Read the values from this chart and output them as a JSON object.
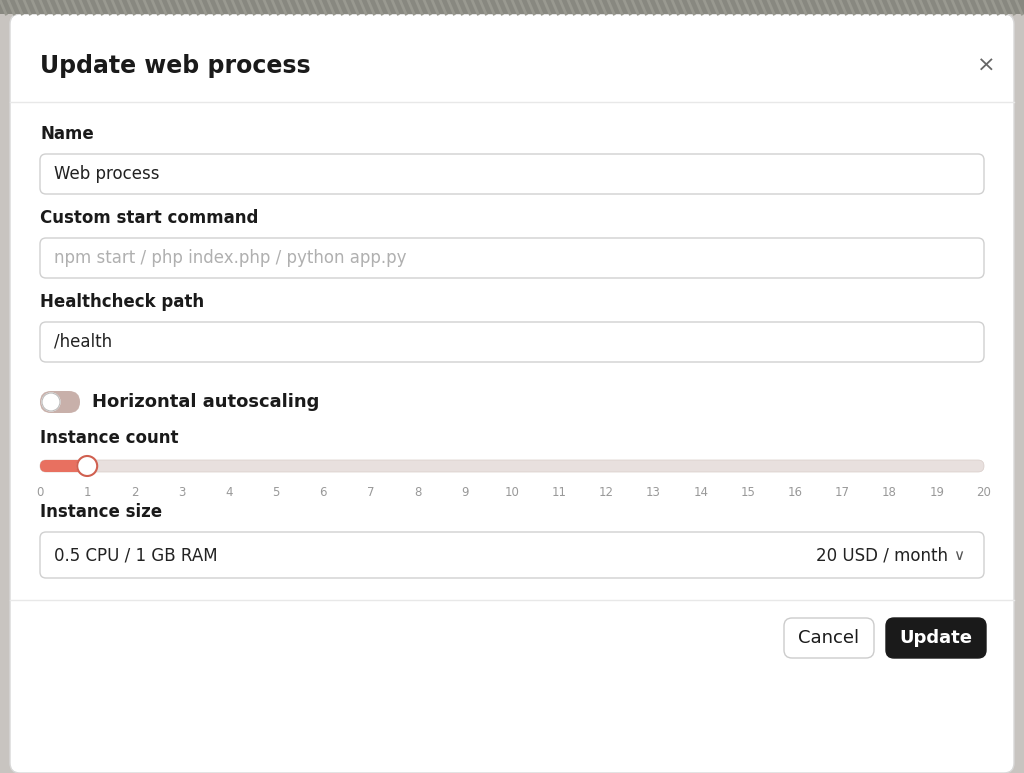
{
  "title": "Update web process",
  "close_btn": "×",
  "bg_color": "#c8c4c0",
  "dialog_bg": "#ffffff",
  "dialog_border": "#d8d8d8",
  "label_color": "#1a1a1a",
  "placeholder_color": "#b0b0b0",
  "input_text_color": "#222222",
  "input_bg": "#ffffff",
  "input_border": "#d0d0d0",
  "field_name_label": "Name",
  "field_name_value": "Web process",
  "field_cmd_label": "Custom start command",
  "field_cmd_placeholder": "npm start / php index.php / python app.py",
  "field_health_label": "Healthcheck path",
  "field_health_value": "/health",
  "toggle_label": "Horizontal autoscaling",
  "slider_label": "Instance count",
  "slider_min": 0,
  "slider_max": 20,
  "slider_value": 1,
  "slider_track_color": "#e8e0de",
  "slider_fill_color": "#e87060",
  "slider_thumb_color": "#ffffff",
  "slider_thumb_border": "#d06050",
  "size_label": "Instance size",
  "size_value": "0.5 CPU / 1 GB RAM",
  "size_price": "20 USD / month",
  "cancel_btn_text": "Cancel",
  "update_btn_text": "Update",
  "cancel_btn_bg": "#ffffff",
  "cancel_btn_border": "#cccccc",
  "update_btn_bg": "#1a1a1a",
  "update_btn_text_color": "#ffffff",
  "cancel_btn_text_color": "#1a1a1a",
  "divider_color": "#e8e8e8",
  "toggle_bg_color": "#c8b0aa",
  "toggle_thumb_color": "#ffffff",
  "title_fontsize": 17,
  "label_fontsize": 12,
  "input_fontsize": 12,
  "btn_fontsize": 13
}
